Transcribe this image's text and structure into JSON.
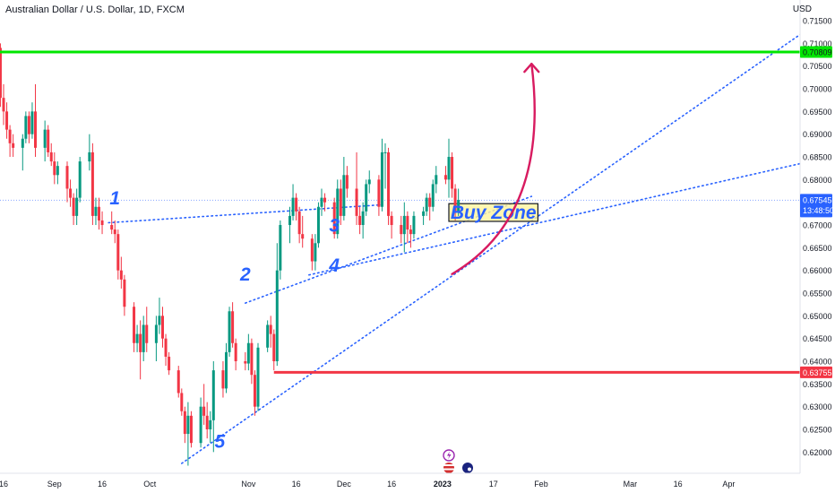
{
  "header": {
    "symbol_title": "Australian Dollar / U.S. Dollar, 1D, FXCM",
    "currency": "USD"
  },
  "price_badges": {
    "resistance": "0.70809",
    "current_price": "0.67545",
    "countdown": "13:48:50",
    "support": "0.63755"
  },
  "annotations": {
    "buy_zone": "Buy Zone",
    "wave_labels": [
      "1",
      "2",
      "3",
      "4",
      "5"
    ]
  },
  "colors": {
    "bull": "#089981",
    "bear": "#f23645",
    "resistance_line": "#00e600",
    "support_line": "#f23645",
    "trend_lines": "#2962ff",
    "arrow": "#d81b60",
    "buy_zone_fill": "#fff59d",
    "label_text": "#2962ff"
  },
  "chart_data": {
    "type": "candlestick",
    "title": "Australian Dollar / U.S. Dollar, 1D, FXCM",
    "ylabel": "USD",
    "ylim": [
      0.6175,
      0.7155
    ],
    "y_ticks": [
      "0.71500",
      "0.71000",
      "0.70500",
      "0.70000",
      "0.69500",
      "0.69000",
      "0.68500",
      "0.68000",
      "0.67500",
      "0.67000",
      "0.66500",
      "0.66000",
      "0.65500",
      "0.65000",
      "0.64500",
      "0.64000",
      "0.63500",
      "0.63000",
      "0.62500",
      "0.62000"
    ],
    "x_ticks": [
      "16",
      "Sep",
      "16",
      "Oct",
      "Nov",
      "16",
      "Dec",
      "16",
      "2023",
      "17",
      "Feb",
      "Mar",
      "16",
      "Apr"
    ],
    "x_tick_dates": [
      "2022-08-16",
      "2022-09-01",
      "2022-09-16",
      "2022-10-01",
      "2022-11-01",
      "2022-11-16",
      "2022-12-01",
      "2022-12-16",
      "2023-01-01",
      "2023-01-17",
      "2023-02-01",
      "2023-03-01",
      "2023-03-16",
      "2023-04-01"
    ],
    "horizontal_levels": [
      {
        "price": 0.70809,
        "color": "#00e600",
        "from": "2022-08-05"
      },
      {
        "price": 0.63755,
        "color": "#f23645",
        "from": "2022-11-09"
      }
    ],
    "current_price": 0.67545,
    "zone": {
      "label": "Buy Zone",
      "from": "2023-01-03",
      "to": "2023-01-31",
      "low": 0.6708,
      "high": 0.6747
    },
    "trend_lines": [
      {
        "points": [
          [
            "2022-09-18",
            0.6705
          ],
          [
            "2022-12-14",
            0.6745
          ]
        ]
      },
      {
        "points": [
          [
            "2022-10-31",
            0.6528
          ],
          [
            "2023-01-29",
            0.6763
          ]
        ]
      },
      {
        "points": [
          [
            "2022-11-20",
            0.659
          ],
          [
            "2023-04-24",
            0.6836
          ]
        ]
      },
      {
        "points": [
          [
            "2022-10-11",
            0.6175
          ],
          [
            "2023-04-25",
            0.7127
          ]
        ]
      }
    ],
    "wave_labels": [
      {
        "label": "1",
        "date": "2022-09-20",
        "price": 0.6745
      },
      {
        "label": "2",
        "date": "2022-10-31",
        "price": 0.6578
      },
      {
        "label": "3",
        "date": "2022-11-28",
        "price": 0.6685
      },
      {
        "label": "4",
        "date": "2022-11-28",
        "price": 0.6597
      },
      {
        "label": "5",
        "date": "2022-10-23",
        "price": 0.621
      }
    ],
    "arrow": {
      "from": [
        "2023-01-04",
        0.6592
      ],
      "ctrl": [
        "2023-02-04",
        0.672
      ],
      "to": [
        "2023-01-29",
        0.7055
      ]
    },
    "candles": [
      {
        "date": "2022-08-05",
        "o": 0.695,
        "h": 0.709,
        "l": 0.693,
        "c": 0.706
      },
      {
        "date": "2022-08-08",
        "o": 0.706,
        "h": 0.711,
        "l": 0.699,
        "c": 0.708
      },
      {
        "date": "2022-08-09",
        "o": 0.708,
        "h": 0.712,
        "l": 0.695,
        "c": 0.698
      },
      {
        "date": "2022-08-10",
        "o": 0.698,
        "h": 0.713,
        "l": 0.697,
        "c": 0.71
      },
      {
        "date": "2022-08-11",
        "o": 0.71,
        "h": 0.7136,
        "l": 0.703,
        "c": 0.711
      },
      {
        "date": "2022-08-12",
        "o": 0.711,
        "h": 0.713,
        "l": 0.704,
        "c": 0.709
      },
      {
        "date": "2022-08-15",
        "o": 0.709,
        "h": 0.71,
        "l": 0.696,
        "c": 0.698
      },
      {
        "date": "2022-08-16",
        "o": 0.698,
        "h": 0.701,
        "l": 0.692,
        "c": 0.695
      },
      {
        "date": "2022-08-17",
        "o": 0.695,
        "h": 0.697,
        "l": 0.689,
        "c": 0.691
      },
      {
        "date": "2022-08-18",
        "o": 0.691,
        "h": 0.692,
        "l": 0.685,
        "c": 0.688
      },
      {
        "date": "2022-08-19",
        "o": 0.688,
        "h": 0.69,
        "l": 0.685,
        "c": 0.687
      },
      {
        "date": "2022-08-22",
        "o": 0.687,
        "h": 0.69,
        "l": 0.682,
        "c": 0.689
      },
      {
        "date": "2022-08-23",
        "o": 0.689,
        "h": 0.695,
        "l": 0.688,
        "c": 0.694
      },
      {
        "date": "2022-08-24",
        "o": 0.694,
        "h": 0.695,
        "l": 0.688,
        "c": 0.69
      },
      {
        "date": "2022-08-25",
        "o": 0.69,
        "h": 0.697,
        "l": 0.689,
        "c": 0.695
      },
      {
        "date": "2022-08-26",
        "o": 0.695,
        "h": 0.701,
        "l": 0.685,
        "c": 0.687
      },
      {
        "date": "2022-08-29",
        "o": 0.687,
        "h": 0.693,
        "l": 0.684,
        "c": 0.691
      },
      {
        "date": "2022-08-30",
        "o": 0.691,
        "h": 0.692,
        "l": 0.685,
        "c": 0.686
      },
      {
        "date": "2022-08-31",
        "o": 0.686,
        "h": 0.688,
        "l": 0.683,
        "c": 0.684
      },
      {
        "date": "2022-09-01",
        "o": 0.684,
        "h": 0.686,
        "l": 0.679,
        "c": 0.681
      },
      {
        "date": "2022-09-02",
        "o": 0.681,
        "h": 0.684,
        "l": 0.679,
        "c": 0.683
      },
      {
        "date": "2022-09-05",
        "o": 0.683,
        "h": 0.684,
        "l": 0.675,
        "c": 0.678
      },
      {
        "date": "2022-09-06",
        "o": 0.678,
        "h": 0.68,
        "l": 0.674,
        "c": 0.676
      },
      {
        "date": "2022-09-07",
        "o": 0.676,
        "h": 0.677,
        "l": 0.67,
        "c": 0.672
      },
      {
        "date": "2022-09-08",
        "o": 0.672,
        "h": 0.678,
        "l": 0.67,
        "c": 0.676
      },
      {
        "date": "2022-09-09",
        "o": 0.676,
        "h": 0.685,
        "l": 0.675,
        "c": 0.684
      },
      {
        "date": "2022-09-12",
        "o": 0.684,
        "h": 0.69,
        "l": 0.682,
        "c": 0.686
      },
      {
        "date": "2022-09-13",
        "o": 0.686,
        "h": 0.688,
        "l": 0.67,
        "c": 0.672
      },
      {
        "date": "2022-09-14",
        "o": 0.672,
        "h": 0.676,
        "l": 0.67,
        "c": 0.674
      },
      {
        "date": "2022-09-15",
        "o": 0.674,
        "h": 0.676,
        "l": 0.669,
        "c": 0.671
      },
      {
        "date": "2022-09-16",
        "o": 0.671,
        "h": 0.673,
        "l": 0.668,
        "c": 0.67
      },
      {
        "date": "2022-09-19",
        "o": 0.67,
        "h": 0.673,
        "l": 0.668,
        "c": 0.669
      },
      {
        "date": "2022-09-20",
        "o": 0.669,
        "h": 0.671,
        "l": 0.666,
        "c": 0.668
      },
      {
        "date": "2022-09-21",
        "o": 0.668,
        "h": 0.669,
        "l": 0.658,
        "c": 0.66
      },
      {
        "date": "2022-09-22",
        "o": 0.66,
        "h": 0.663,
        "l": 0.656,
        "c": 0.658
      },
      {
        "date": "2022-09-23",
        "o": 0.658,
        "h": 0.659,
        "l": 0.65,
        "c": 0.652
      },
      {
        "date": "2022-09-26",
        "o": 0.652,
        "h": 0.653,
        "l": 0.642,
        "c": 0.644
      },
      {
        "date": "2022-09-27",
        "o": 0.644,
        "h": 0.648,
        "l": 0.642,
        "c": 0.646
      },
      {
        "date": "2022-09-28",
        "o": 0.646,
        "h": 0.649,
        "l": 0.636,
        "c": 0.642
      },
      {
        "date": "2022-09-29",
        "o": 0.642,
        "h": 0.65,
        "l": 0.64,
        "c": 0.648
      },
      {
        "date": "2022-09-30",
        "o": 0.648,
        "h": 0.652,
        "l": 0.642,
        "c": 0.644
      },
      {
        "date": "2022-10-03",
        "o": 0.644,
        "h": 0.65,
        "l": 0.64,
        "c": 0.648
      },
      {
        "date": "2022-10-04",
        "o": 0.648,
        "h": 0.654,
        "l": 0.646,
        "c": 0.65
      },
      {
        "date": "2022-10-05",
        "o": 0.65,
        "h": 0.652,
        "l": 0.643,
        "c": 0.645
      },
      {
        "date": "2022-10-06",
        "o": 0.645,
        "h": 0.646,
        "l": 0.639,
        "c": 0.641
      },
      {
        "date": "2022-10-07",
        "o": 0.641,
        "h": 0.642,
        "l": 0.637,
        "c": 0.638
      },
      {
        "date": "2022-10-10",
        "o": 0.638,
        "h": 0.639,
        "l": 0.632,
        "c": 0.633
      },
      {
        "date": "2022-10-11",
        "o": 0.633,
        "h": 0.634,
        "l": 0.628,
        "c": 0.629
      },
      {
        "date": "2022-10-12",
        "o": 0.629,
        "h": 0.63,
        "l": 0.622,
        "c": 0.624
      },
      {
        "date": "2022-10-13",
        "o": 0.624,
        "h": 0.631,
        "l": 0.617,
        "c": 0.628
      },
      {
        "date": "2022-10-14",
        "o": 0.628,
        "h": 0.629,
        "l": 0.621,
        "c": 0.622
      },
      {
        "date": "2022-10-17",
        "o": 0.622,
        "h": 0.632,
        "l": 0.621,
        "c": 0.63
      },
      {
        "date": "2022-10-18",
        "o": 0.63,
        "h": 0.635,
        "l": 0.626,
        "c": 0.628
      },
      {
        "date": "2022-10-19",
        "o": 0.628,
        "h": 0.631,
        "l": 0.623,
        "c": 0.625
      },
      {
        "date": "2022-10-20",
        "o": 0.625,
        "h": 0.629,
        "l": 0.622,
        "c": 0.627
      },
      {
        "date": "2022-10-21",
        "o": 0.627,
        "h": 0.64,
        "l": 0.62,
        "c": 0.638
      },
      {
        "date": "2022-10-24",
        "o": 0.638,
        "h": 0.64,
        "l": 0.632,
        "c": 0.634
      },
      {
        "date": "2022-10-25",
        "o": 0.634,
        "h": 0.644,
        "l": 0.633,
        "c": 0.642
      },
      {
        "date": "2022-10-26",
        "o": 0.642,
        "h": 0.652,
        "l": 0.641,
        "c": 0.651
      },
      {
        "date": "2022-10-27",
        "o": 0.651,
        "h": 0.653,
        "l": 0.643,
        "c": 0.644
      },
      {
        "date": "2022-10-28",
        "o": 0.644,
        "h": 0.645,
        "l": 0.638,
        "c": 0.64
      },
      {
        "date": "2022-10-31",
        "o": 0.64,
        "h": 0.642,
        "l": 0.638,
        "c": 0.6395
      },
      {
        "date": "2022-11-01",
        "o": 0.6395,
        "h": 0.646,
        "l": 0.638,
        "c": 0.644
      },
      {
        "date": "2022-11-02",
        "o": 0.644,
        "h": 0.645,
        "l": 0.635,
        "c": 0.637
      },
      {
        "date": "2022-11-03",
        "o": 0.637,
        "h": 0.638,
        "l": 0.628,
        "c": 0.63
      },
      {
        "date": "2022-11-04",
        "o": 0.63,
        "h": 0.644,
        "l": 0.629,
        "c": 0.643
      },
      {
        "date": "2022-11-07",
        "o": 0.643,
        "h": 0.649,
        "l": 0.642,
        "c": 0.648
      },
      {
        "date": "2022-11-08",
        "o": 0.648,
        "h": 0.65,
        "l": 0.643,
        "c": 0.646
      },
      {
        "date": "2022-11-09",
        "o": 0.646,
        "h": 0.647,
        "l": 0.638,
        "c": 0.64
      },
      {
        "date": "2022-11-10",
        "o": 0.64,
        "h": 0.666,
        "l": 0.639,
        "c": 0.66
      },
      {
        "date": "2022-11-11",
        "o": 0.66,
        "h": 0.671,
        "l": 0.658,
        "c": 0.67
      },
      {
        "date": "2022-11-14",
        "o": 0.67,
        "h": 0.674,
        "l": 0.666,
        "c": 0.672
      },
      {
        "date": "2022-11-15",
        "o": 0.672,
        "h": 0.679,
        "l": 0.671,
        "c": 0.676
      },
      {
        "date": "2022-11-16",
        "o": 0.676,
        "h": 0.677,
        "l": 0.671,
        "c": 0.673
      },
      {
        "date": "2022-11-17",
        "o": 0.673,
        "h": 0.674,
        "l": 0.666,
        "c": 0.668
      },
      {
        "date": "2022-11-18",
        "o": 0.668,
        "h": 0.672,
        "l": 0.665,
        "c": 0.667
      },
      {
        "date": "2022-11-21",
        "o": 0.667,
        "h": 0.668,
        "l": 0.66,
        "c": 0.662
      },
      {
        "date": "2022-11-22",
        "o": 0.662,
        "h": 0.668,
        "l": 0.66,
        "c": 0.666
      },
      {
        "date": "2022-11-23",
        "o": 0.666,
        "h": 0.675,
        "l": 0.665,
        "c": 0.674
      },
      {
        "date": "2022-11-24",
        "o": 0.674,
        "h": 0.678,
        "l": 0.672,
        "c": 0.676
      },
      {
        "date": "2022-11-25",
        "o": 0.676,
        "h": 0.677,
        "l": 0.673,
        "c": 0.675
      },
      {
        "date": "2022-11-28",
        "o": 0.675,
        "h": 0.676,
        "l": 0.667,
        "c": 0.668
      },
      {
        "date": "2022-11-29",
        "o": 0.668,
        "h": 0.68,
        "l": 0.667,
        "c": 0.678
      },
      {
        "date": "2022-11-30",
        "o": 0.678,
        "h": 0.68,
        "l": 0.67,
        "c": 0.672
      },
      {
        "date": "2022-12-01",
        "o": 0.672,
        "h": 0.685,
        "l": 0.671,
        "c": 0.681
      },
      {
        "date": "2022-12-02",
        "o": 0.681,
        "h": 0.683,
        "l": 0.676,
        "c": 0.678
      },
      {
        "date": "2022-12-05",
        "o": 0.678,
        "h": 0.686,
        "l": 0.67,
        "c": 0.672
      },
      {
        "date": "2022-12-06",
        "o": 0.672,
        "h": 0.674,
        "l": 0.668,
        "c": 0.67
      },
      {
        "date": "2022-12-07",
        "o": 0.67,
        "h": 0.675,
        "l": 0.667,
        "c": 0.673
      },
      {
        "date": "2022-12-08",
        "o": 0.673,
        "h": 0.68,
        "l": 0.672,
        "c": 0.679
      },
      {
        "date": "2022-12-09",
        "o": 0.679,
        "h": 0.682,
        "l": 0.677,
        "c": 0.68
      },
      {
        "date": "2022-12-12",
        "o": 0.68,
        "h": 0.681,
        "l": 0.672,
        "c": 0.674
      },
      {
        "date": "2022-12-13",
        "o": 0.674,
        "h": 0.689,
        "l": 0.673,
        "c": 0.686
      },
      {
        "date": "2022-12-14",
        "o": 0.686,
        "h": 0.688,
        "l": 0.678,
        "c": 0.686
      },
      {
        "date": "2022-12-15",
        "o": 0.686,
        "h": 0.687,
        "l": 0.67,
        "c": 0.672
      },
      {
        "date": "2022-12-16",
        "o": 0.672,
        "h": 0.673,
        "l": 0.667,
        "c": 0.67
      },
      {
        "date": "2022-12-19",
        "o": 0.67,
        "h": 0.672,
        "l": 0.666,
        "c": 0.668
      },
      {
        "date": "2022-12-20",
        "o": 0.668,
        "h": 0.675,
        "l": 0.664,
        "c": 0.672
      },
      {
        "date": "2022-12-21",
        "o": 0.672,
        "h": 0.673,
        "l": 0.666,
        "c": 0.669
      },
      {
        "date": "2022-12-22",
        "o": 0.669,
        "h": 0.67,
        "l": 0.665,
        "c": 0.668
      },
      {
        "date": "2022-12-23",
        "o": 0.668,
        "h": 0.673,
        "l": 0.667,
        "c": 0.672
      },
      {
        "date": "2022-12-26",
        "o": 0.672,
        "h": 0.674,
        "l": 0.67,
        "c": 0.673
      },
      {
        "date": "2022-12-27",
        "o": 0.673,
        "h": 0.677,
        "l": 0.672,
        "c": 0.676
      },
      {
        "date": "2022-12-28",
        "o": 0.676,
        "h": 0.677,
        "l": 0.671,
        "c": 0.674
      },
      {
        "date": "2022-12-29",
        "o": 0.674,
        "h": 0.68,
        "l": 0.673,
        "c": 0.679
      },
      {
        "date": "2022-12-30",
        "o": 0.679,
        "h": 0.683,
        "l": 0.677,
        "c": 0.681
      },
      {
        "date": "2023-01-02",
        "o": 0.681,
        "h": 0.683,
        "l": 0.679,
        "c": 0.68
      },
      {
        "date": "2023-01-03",
        "o": 0.68,
        "h": 0.689,
        "l": 0.676,
        "c": 0.685
      },
      {
        "date": "2023-01-04",
        "o": 0.685,
        "h": 0.686,
        "l": 0.676,
        "c": 0.678
      },
      {
        "date": "2023-01-05",
        "o": 0.678,
        "h": 0.679,
        "l": 0.671,
        "c": 0.673
      },
      {
        "date": "2023-01-06",
        "o": 0.673,
        "h": 0.678,
        "l": 0.672,
        "c": 0.6755
      }
    ]
  }
}
